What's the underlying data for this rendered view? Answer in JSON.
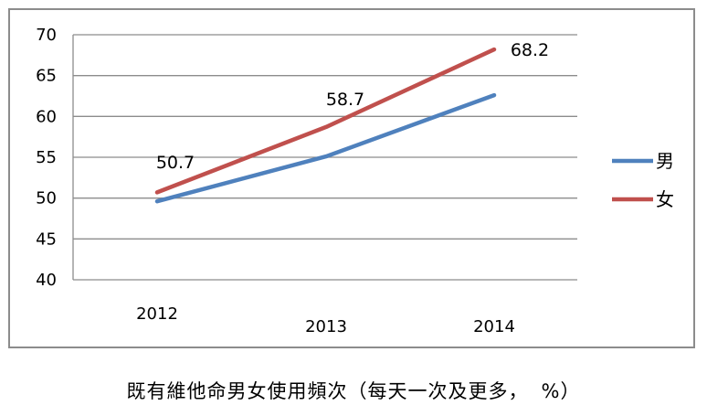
{
  "chart_data": {
    "type": "line",
    "categories": [
      "2012",
      "2013",
      "2014"
    ],
    "series": [
      {
        "name": "男",
        "values": [
          49.6,
          55.1,
          62.6
        ],
        "color": "#4f81bd",
        "labels": []
      },
      {
        "name": "女",
        "values": [
          50.7,
          58.7,
          68.2
        ],
        "color": "#c0504d",
        "labels": [
          "50.7",
          "58.7",
          "68.2"
        ]
      }
    ],
    "ylim": [
      40,
      70
    ],
    "yticks": [
      "40",
      "45",
      "50",
      "55",
      "60",
      "65",
      "70"
    ],
    "grid": true,
    "legend": "right",
    "caption_text": "既有維他命男女使用頻次（每天一次及更多，",
    "caption_unit": "%",
    "caption_close": "）"
  }
}
